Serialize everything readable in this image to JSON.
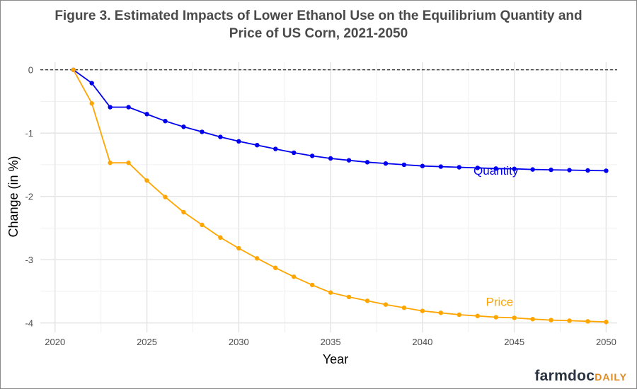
{
  "chart_data": {
    "type": "line",
    "title_lines": [
      "Figure 3. Estimated Impacts of Lower Ethanol Use on the Equilibrium Quantity and",
      "Price of US Corn, 2021-2050"
    ],
    "xlabel": "Year",
    "ylabel": "Change (in %)",
    "xlim": [
      2019.2,
      2050.6
    ],
    "ylim": [
      -4.15,
      0.12
    ],
    "x_ticks": [
      2020,
      2025,
      2030,
      2035,
      2040,
      2045,
      2050
    ],
    "y_ticks": [
      0,
      -1,
      -2,
      -3,
      -4
    ],
    "grid": true,
    "reference_line": {
      "y": 0,
      "style": "dashed"
    },
    "x": [
      2021,
      2022,
      2023,
      2024,
      2025,
      2026,
      2027,
      2028,
      2029,
      2030,
      2031,
      2032,
      2033,
      2034,
      2035,
      2036,
      2037,
      2038,
      2039,
      2040,
      2041,
      2042,
      2043,
      2044,
      2045,
      2046,
      2047,
      2048,
      2049,
      2050
    ],
    "series": [
      {
        "name": "Quantity",
        "color": "#0000ee",
        "label_at": [
          2044,
          -1.66
        ],
        "values": [
          0,
          -0.21,
          -0.59,
          -0.59,
          -0.7,
          -0.81,
          -0.9,
          -0.98,
          -1.06,
          -1.13,
          -1.19,
          -1.25,
          -1.31,
          -1.36,
          -1.4,
          -1.43,
          -1.46,
          -1.48,
          -1.5,
          -1.52,
          -1.53,
          -1.54,
          -1.55,
          -1.56,
          -1.565,
          -1.575,
          -1.58,
          -1.585,
          -1.59,
          -1.595
        ]
      },
      {
        "name": "Price",
        "color": "#ffa500",
        "label_at": [
          2044.2,
          -3.73
        ],
        "values": [
          0,
          -0.53,
          -1.47,
          -1.47,
          -1.75,
          -2.01,
          -2.25,
          -2.45,
          -2.65,
          -2.82,
          -2.98,
          -3.13,
          -3.27,
          -3.4,
          -3.52,
          -3.59,
          -3.65,
          -3.71,
          -3.76,
          -3.81,
          -3.84,
          -3.87,
          -3.89,
          -3.91,
          -3.92,
          -3.94,
          -3.955,
          -3.965,
          -3.975,
          -3.985
        ]
      }
    ]
  },
  "branding": {
    "part1": "farmdoc",
    "part2": "DAILY",
    "color1": "#2a3440",
    "color2": "#e08a1e"
  }
}
